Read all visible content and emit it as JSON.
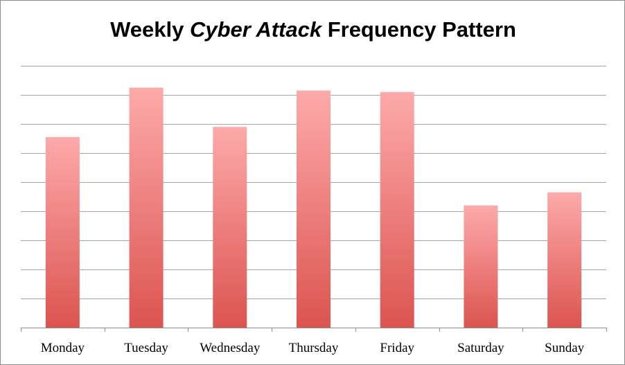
{
  "chart_data": {
    "type": "bar",
    "title_parts": [
      {
        "text": "Weekly ",
        "italic": false
      },
      {
        "text": "Cyber Attack",
        "italic": true
      },
      {
        "text": " Frequency Pattern",
        "italic": false
      }
    ],
    "categories": [
      "Monday",
      "Tuesday",
      "Wednesday",
      "Thursday",
      "Friday",
      "Saturday",
      "Sunday"
    ],
    "values": [
      6.55,
      8.25,
      6.9,
      8.15,
      8.1,
      4.2,
      4.65
    ],
    "ylim": [
      0,
      9
    ],
    "gridlines": 9,
    "grid": true,
    "legend": "none",
    "bar_color_top": "#fdaaaa",
    "bar_color_bottom": "#dc5450",
    "grid_color": "#a6a6a6"
  }
}
